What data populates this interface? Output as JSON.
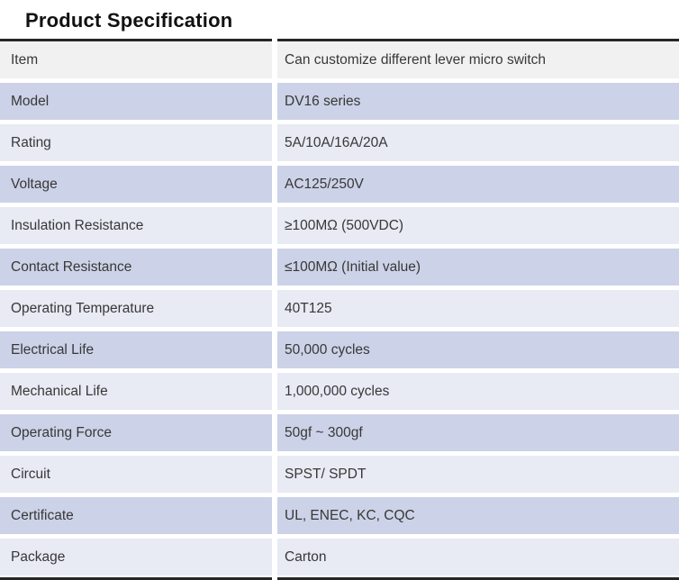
{
  "title": "Product Specification",
  "colors": {
    "title": "#111111",
    "border": "#262626",
    "text": "#383838",
    "row_gray": "#f1f1f1",
    "row_dark": "#ccd2e7",
    "row_light": "#e8eaf4"
  },
  "table": {
    "rows": [
      {
        "label": "Item",
        "value": "Can customize different lever micro switch"
      },
      {
        "label": "Model",
        "value": "DV16 series"
      },
      {
        "label": "Rating",
        "value": "5A/10A/16A/20A"
      },
      {
        "label": "Voltage",
        "value": "AC125/250V"
      },
      {
        "label": "Insulation Resistance",
        "value": "≥100MΩ (500VDC)"
      },
      {
        "label": "Contact Resistance",
        "value": "≤100MΩ (Initial value)"
      },
      {
        "label": "Operating Temperature",
        "value": "40T125"
      },
      {
        "label": "Electrical Life",
        "value": "50,000 cycles"
      },
      {
        "label": "Mechanical Life",
        "value": "1,000,000 cycles"
      },
      {
        "label": "Operating Force",
        "value": "50gf ~ 300gf"
      },
      {
        "label": "Circuit",
        "value": "SPST/ SPDT"
      },
      {
        "label": "Certificate",
        "value": "UL, ENEC, KC, CQC"
      },
      {
        "label": "Package",
        "value": "Carton"
      }
    ]
  }
}
